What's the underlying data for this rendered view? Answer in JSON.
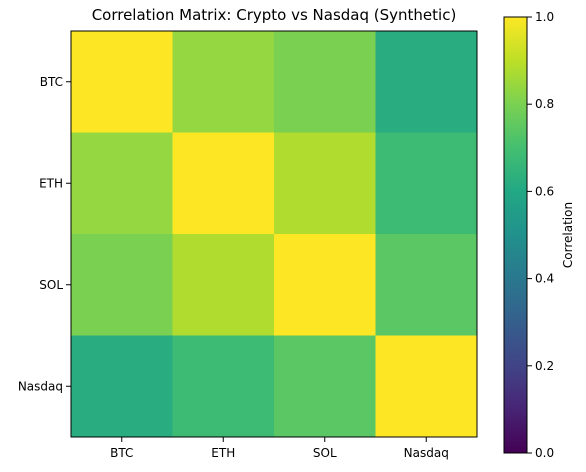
{
  "chart_data": {
    "type": "heatmap",
    "title": "Correlation Matrix: Crypto vs Nasdaq (Synthetic)",
    "x_categories": [
      "BTC",
      "ETH",
      "SOL",
      "Nasdaq"
    ],
    "y_categories": [
      "BTC",
      "ETH",
      "SOL",
      "Nasdaq"
    ],
    "values": [
      [
        1.0,
        0.84,
        0.8,
        0.62
      ],
      [
        0.84,
        1.0,
        0.88,
        0.68
      ],
      [
        0.8,
        0.88,
        1.0,
        0.74
      ],
      [
        0.62,
        0.68,
        0.74,
        1.0
      ]
    ],
    "colorbar": {
      "label": "Correlation",
      "range": [
        0.0,
        1.0
      ],
      "ticks": [
        "0.0",
        "0.2",
        "0.4",
        "0.6",
        "0.8",
        "1.0"
      ],
      "colormap": "viridis"
    }
  }
}
